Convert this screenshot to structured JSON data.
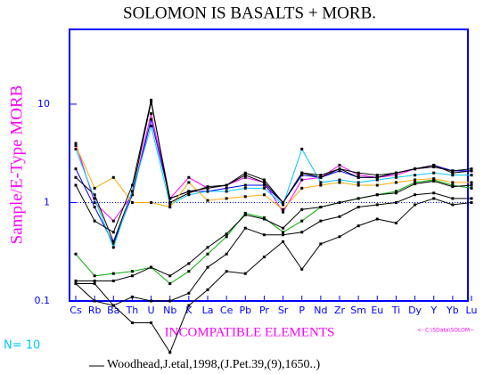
{
  "chart_data": {
    "type": "line",
    "title": "SOLOMON IS BASALTS + MORB.",
    "y_label": "Sample/E-Type MORB",
    "x_label": "INCOMPATIBLE ELEMENTS",
    "count_label": "N= 10",
    "source_label": "<- C:\\SData\\SOLOM~",
    "citation": "Woodhead,J.etal,1998,(J.Pet.39,(9),1650..)",
    "log_scale": true,
    "ylim": [
      0.1,
      57.5
    ],
    "yticks": [
      0.1,
      1,
      10
    ],
    "reference_line": 1,
    "reference_color": "#0000ff",
    "categories": [
      "Cs",
      "Rb",
      "Ba",
      "Th",
      "U",
      "Nb",
      "K",
      "La",
      "Ce",
      "Pb",
      "Pr",
      "Sr",
      "P",
      "Nd",
      "Zr",
      "Sm",
      "Eu",
      "Ti",
      "Dy",
      "Y",
      "Yb",
      "Lu"
    ],
    "series": [
      {
        "color": "#ff00ff",
        "values": [
          4,
          1.0,
          0.65,
          1.2,
          8,
          1.1,
          1.8,
          1.4,
          1.5,
          1.8,
          1.6,
          0.8,
          1.7,
          1.8,
          2.4,
          1.9,
          1.8,
          1.9,
          2.2,
          2.3,
          2.1,
          2.1
        ]
      },
      {
        "color": "#0000ff",
        "values": [
          2.2,
          0.9,
          0.38,
          1.2,
          7,
          1.1,
          1.3,
          1.3,
          1.4,
          1.5,
          1.5,
          1.0,
          1.9,
          1.8,
          2.1,
          1.8,
          1.8,
          2.0,
          2.2,
          2.4,
          2.1,
          2.1
        ]
      },
      {
        "color": "#000000",
        "values": [
          1.8,
          1.2,
          0.4,
          1.3,
          10.5,
          1.1,
          1.3,
          1.4,
          1.5,
          1.9,
          1.6,
          1.0,
          2.0,
          1.8,
          2.2,
          1.8,
          1.8,
          2.0,
          2.2,
          2.3,
          2.1,
          2.2
        ]
      },
      {
        "color": "#00c8ff",
        "values": [
          3.5,
          1.1,
          0.35,
          1.3,
          6,
          0.95,
          1.2,
          1.3,
          1.3,
          1.4,
          1.4,
          0.95,
          3.5,
          1.6,
          1.7,
          1.6,
          1.7,
          1.8,
          1.9,
          2.0,
          1.9,
          1.9
        ]
      },
      {
        "color": "#ffaa00",
        "values": [
          3.8,
          1.4,
          1.8,
          1.0,
          1.0,
          0.9,
          1.6,
          1.05,
          1.1,
          1.15,
          1.2,
          0.85,
          1.4,
          1.5,
          1.6,
          1.5,
          1.5,
          1.6,
          1.7,
          1.75,
          1.6,
          1.6
        ]
      },
      {
        "color": "#00b000",
        "values": [
          0.3,
          0.18,
          0.19,
          0.2,
          0.22,
          0.15,
          0.2,
          0.3,
          0.45,
          0.78,
          0.7,
          0.5,
          0.65,
          0.9,
          1.0,
          1.1,
          1.2,
          1.3,
          1.6,
          1.7,
          1.5,
          1.4
        ]
      },
      {
        "color": "#000000",
        "values": [
          0.16,
          0.16,
          0.16,
          0.18,
          0.22,
          0.18,
          0.24,
          0.35,
          0.48,
          0.75,
          0.68,
          0.55,
          0.85,
          0.9,
          1.0,
          1.1,
          1.2,
          1.25,
          1.55,
          1.65,
          1.45,
          1.5
        ]
      },
      {
        "color": "#000000",
        "values": [
          0.15,
          0.15,
          0.09,
          0.11,
          0.1,
          0.1,
          0.12,
          0.22,
          0.3,
          0.55,
          0.47,
          0.47,
          0.5,
          0.65,
          0.72,
          0.9,
          0.95,
          1.0,
          1.2,
          1.25,
          1.1,
          1.1
        ]
      },
      {
        "color": "#000000",
        "values": [
          0.15,
          0.1,
          0.09,
          0.06,
          0.06,
          0.03,
          0.09,
          0.13,
          0.2,
          0.19,
          0.28,
          0.4,
          0.21,
          0.38,
          0.45,
          0.58,
          0.68,
          0.62,
          0.95,
          1.1,
          0.95,
          1.0
        ]
      },
      {
        "color": "#000000",
        "values": [
          1.5,
          0.65,
          0.5,
          1.5,
          11,
          1.0,
          1.25,
          1.45,
          1.5,
          2.0,
          1.7,
          1.0,
          2.0,
          1.9,
          2.2,
          2.0,
          1.9,
          2.0,
          2.2,
          2.4,
          2.0,
          2.1
        ]
      }
    ]
  }
}
